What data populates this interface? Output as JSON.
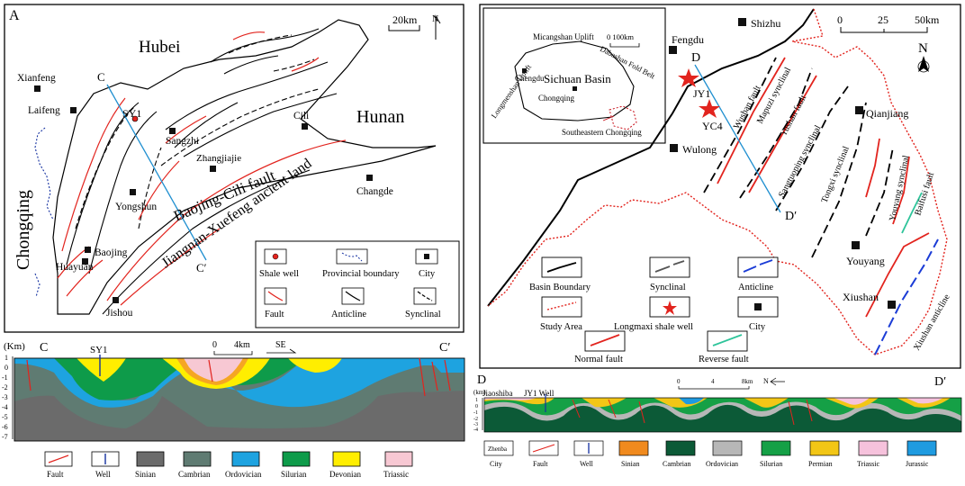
{
  "panelA": {
    "letter": "A",
    "scale": "20km",
    "north": "N",
    "regions": {
      "hubei": "Hubei",
      "hunan": "Hunan",
      "chongqing": "Chongqing"
    },
    "cities": [
      "Xianfeng",
      "Laifeng",
      "Sangzhi",
      "Cili",
      "Zhangjiajie",
      "Yongshun",
      "Baojing",
      "Huayuan",
      "Jishou",
      "Changde"
    ],
    "well": "SY1",
    "faultLabel": "Baojing-Cili fault",
    "landLabel": "Jiangnan-Xuefeng ancient land",
    "sectionStart": "C",
    "sectionEnd": "C′",
    "legend": {
      "shaleWell": "Shale well",
      "provincial": "Provincial boundary",
      "city": "City",
      "fault": "Fault",
      "anticline": "Anticline",
      "synclinal": "Synclinal"
    }
  },
  "panelB": {
    "letter": "B",
    "scaleTicks": [
      "0",
      "25",
      "50km"
    ],
    "north": "N",
    "inset": {
      "basin": "Sichuan Basin",
      "micangshan": "Micangshan Uplift",
      "dabashan": "Dabashan Fold Belt",
      "longmenshan": "Longmenshan Uplift",
      "chengdu": "Chengdu",
      "chongqing": "Chongqing",
      "se": "Southeastern Chongqing",
      "scale": "0    100km"
    },
    "cities": [
      "Shizhu",
      "Fengdu",
      "Wulong",
      "Qianjiang",
      "Youyang",
      "Xiushan"
    ],
    "wells": [
      "JY1",
      "YC4"
    ],
    "structures": [
      "Wushan fault",
      "Mapuzi synclinal",
      "Yushan fault",
      "Sangtuoping synclinal",
      "Tongxi synclinal",
      "Youyang synclinal",
      "Baifusi fault",
      "Xiushan anticline"
    ],
    "sectionStart": "D",
    "sectionEnd": "D′",
    "legend": {
      "basin": "Basin Boundary",
      "synclinal": "Synclinal",
      "anticline": "Anticline",
      "study": "Study  Area",
      "longmaxi": "Longmaxi shale well",
      "city": "City",
      "normal": "Normal fault",
      "reverse": "Reverse fault"
    }
  },
  "sectionC": {
    "unit": "(Km)",
    "start": "C",
    "end": "C′",
    "well": "SY1",
    "scale": [
      "0",
      "4km"
    ],
    "direction": "SE",
    "depthTicks": [
      "1",
      "0",
      "-1",
      "-2",
      "-3",
      "-4",
      "-5",
      "-6",
      "-7"
    ],
    "legend": [
      {
        "label": "Fault",
        "color": "#ffffff",
        "type": "fault"
      },
      {
        "label": "Well",
        "color": "#ffffff",
        "type": "well"
      },
      {
        "label": "Sinian",
        "color": "#6b6b6b"
      },
      {
        "label": "Cambrian",
        "color": "#5f7b72"
      },
      {
        "label": "Ordovician",
        "color": "#1ea3e0"
      },
      {
        "label": "Silurian",
        "color": "#0e9b4a"
      },
      {
        "label": "Devonian",
        "color": "#ffee00"
      },
      {
        "label": "Triassic",
        "color": "#f7c8d3"
      }
    ]
  },
  "sectionD": {
    "unit": "(km)",
    "start": "D",
    "end": "D′",
    "locality": "Jiaoshiba",
    "well": "JY1 Well",
    "scale": [
      "0",
      "4",
      "8km"
    ],
    "north": "N",
    "depthTicks": [
      "1",
      "0",
      "-1",
      "-2",
      "-3",
      "-4"
    ],
    "legend": [
      {
        "label": "City",
        "color": "#ffffff",
        "type": "city",
        "text": "Zhenba"
      },
      {
        "label": "Fault",
        "color": "#ffffff",
        "type": "fault"
      },
      {
        "label": "Well",
        "color": "#ffffff",
        "type": "well"
      },
      {
        "label": "Sinian",
        "color": "#f08a1e"
      },
      {
        "label": "Cambrian",
        "color": "#0c5a37"
      },
      {
        "label": "Ordovician",
        "color": "#b7b7b7"
      },
      {
        "label": "Silurian",
        "color": "#15a046"
      },
      {
        "label": "Permian",
        "color": "#f2c616"
      },
      {
        "label": "Triassic",
        "color": "#f6c2dc"
      },
      {
        "label": "Jurassic",
        "color": "#1f9be0"
      }
    ]
  }
}
